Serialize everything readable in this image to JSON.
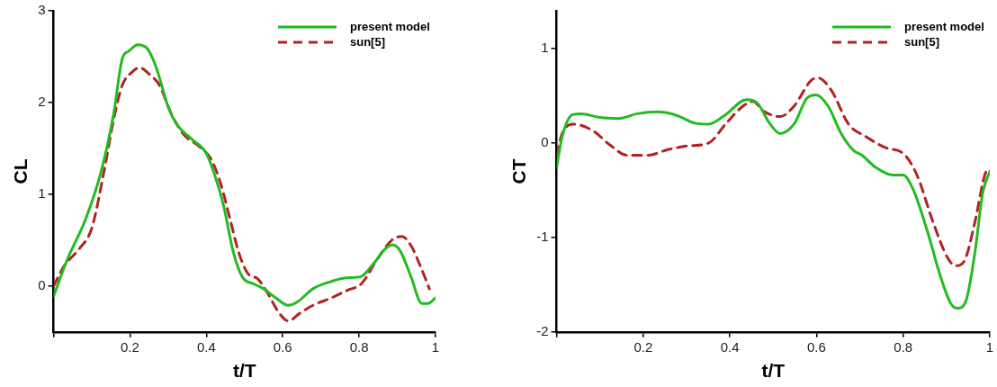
{
  "chart_data": [
    {
      "type": "line",
      "xlabel": "t/T",
      "ylabel": "CL",
      "xlim": [
        0,
        1
      ],
      "ylim": [
        -0.5,
        3
      ],
      "xticks": [
        {
          "value": 0,
          "label": null
        },
        0.2,
        0.4,
        0.6,
        0.8,
        1
      ],
      "yticks": [
        0,
        1,
        2,
        3
      ],
      "legend": "top right",
      "series": [
        {
          "name": "present model",
          "color": "#22bb22",
          "line_style": "solid",
          "x": [
            0,
            0.036,
            0.084,
            0.124,
            0.157,
            0.18,
            0.197,
            0.22,
            0.245,
            0.269,
            0.301,
            0.325,
            0.365,
            0.398,
            0.422,
            0.446,
            0.47,
            0.494,
            0.526,
            0.55,
            0.582,
            0.614,
            0.639,
            0.679,
            0.727,
            0.767,
            0.803,
            0.839,
            0.867,
            0.888,
            0.908,
            0.936,
            0.964,
            0.98,
            1
          ],
          "values": [
            -0.11,
            0.29,
            0.73,
            1.24,
            1.87,
            2.48,
            2.56,
            2.63,
            2.59,
            2.38,
            1.94,
            1.75,
            1.59,
            1.46,
            1.21,
            0.86,
            0.38,
            0.1,
            0.02,
            -0.03,
            -0.13,
            -0.21,
            -0.17,
            -0.03,
            0.05,
            0.09,
            0.1,
            0.25,
            0.4,
            0.45,
            0.38,
            0.1,
            -0.19,
            -0.19,
            -0.13
          ]
        },
        {
          "name": "sun[5]",
          "color": "#b22222",
          "line_style": "dashed",
          "x": [
            0,
            0.028,
            0.068,
            0.1,
            0.133,
            0.157,
            0.18,
            0.205,
            0.225,
            0.253,
            0.277,
            0.309,
            0.341,
            0.382,
            0.414,
            0.438,
            0.462,
            0.486,
            0.51,
            0.534,
            0.558,
            0.59,
            0.614,
            0.647,
            0.679,
            0.727,
            0.767,
            0.807,
            0.847,
            0.888,
            0.912,
            0.936,
            0.96,
            0.984
          ],
          "values": [
            0,
            0.22,
            0.41,
            0.63,
            1.27,
            1.81,
            2.19,
            2.33,
            2.38,
            2.3,
            2.19,
            1.87,
            1.65,
            1.52,
            1.37,
            1.11,
            0.73,
            0.35,
            0.13,
            0.08,
            -0.06,
            -0.29,
            -0.38,
            -0.29,
            -0.21,
            -0.13,
            -0.05,
            0.03,
            0.29,
            0.51,
            0.54,
            0.44,
            0.22,
            -0.03
          ]
        }
      ]
    },
    {
      "type": "line",
      "xlabel": "t/T",
      "ylabel": "CT",
      "xlim": [
        0,
        1
      ],
      "ylim": [
        -2,
        1.4
      ],
      "xticks": [
        {
          "value": 0,
          "label": null
        },
        0.2,
        0.4,
        0.6,
        0.8,
        1
      ],
      "yticks": [
        -2,
        -1,
        0,
        1
      ],
      "legend": "top right",
      "series": [
        {
          "name": "present model",
          "color": "#22bb22",
          "line_style": "solid",
          "x": [
            0,
            0.013,
            0.037,
            0.057,
            0.1,
            0.143,
            0.186,
            0.233,
            0.273,
            0.32,
            0.351,
            0.39,
            0.438,
            0.462,
            0.493,
            0.516,
            0.548,
            0.579,
            0.599,
            0.627,
            0.657,
            0.686,
            0.705,
            0.737,
            0.776,
            0.8,
            0.823,
            0.855,
            0.886,
            0.91,
            0.925,
            0.945,
            0.965,
            0.984,
            1
          ],
          "values": [
            -0.26,
            0.07,
            0.3,
            0.31,
            0.27,
            0.26,
            0.31,
            0.33,
            0.3,
            0.21,
            0.2,
            0.3,
            0.46,
            0.43,
            0.2,
            0.1,
            0.2,
            0.48,
            0.51,
            0.39,
            0.1,
            -0.08,
            -0.13,
            -0.26,
            -0.34,
            -0.34,
            -0.49,
            -0.92,
            -1.41,
            -1.7,
            -1.75,
            -1.67,
            -1.18,
            -0.52,
            -0.3
          ]
        },
        {
          "name": "sun[5]",
          "color": "#b22222",
          "line_style": "dashed",
          "x": [
            0,
            0.013,
            0.037,
            0.084,
            0.123,
            0.163,
            0.21,
            0.257,
            0.304,
            0.351,
            0.39,
            0.43,
            0.454,
            0.477,
            0.516,
            0.548,
            0.587,
            0.603,
            0.634,
            0.674,
            0.713,
            0.76,
            0.8,
            0.831,
            0.87,
            0.902,
            0.921,
            0.941,
            0.965,
            0.989,
            1
          ],
          "values": [
            -0.13,
            0.1,
            0.2,
            0.13,
            -0.02,
            -0.13,
            -0.13,
            -0.07,
            -0.03,
            0,
            0.2,
            0.39,
            0.44,
            0.34,
            0.28,
            0.39,
            0.66,
            0.69,
            0.56,
            0.2,
            0.07,
            -0.05,
            -0.11,
            -0.33,
            -0.85,
            -1.21,
            -1.3,
            -1.25,
            -0.85,
            -0.33,
            -0.26
          ]
        }
      ]
    }
  ]
}
